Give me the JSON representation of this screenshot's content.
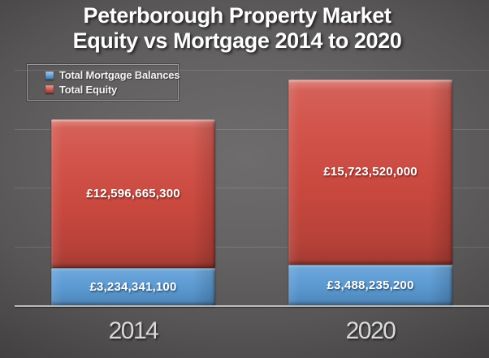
{
  "title": {
    "line1": "Peterborough Property Market",
    "line2": "Equity vs Mortgage 2014 to 2020"
  },
  "legend": {
    "items": [
      {
        "label": "Total Mortgage Balances",
        "series": "mortgage"
      },
      {
        "label": "Total Equity",
        "series": "equity"
      }
    ]
  },
  "chart_data": {
    "type": "bar",
    "stacked": true,
    "title": "Peterborough Property Market Equity vs Mortgage 2014 to 2020",
    "categories": [
      "2014",
      "2020"
    ],
    "series": [
      {
        "name": "Total Mortgage Balances",
        "key": "mortgage",
        "color": "#5B9BD5",
        "values": [
          3234341100,
          3488235200
        ],
        "data_labels": [
          "£3,234,341,100",
          "£3,488,235,200"
        ]
      },
      {
        "name": "Total Equity",
        "key": "equity",
        "color": "#CF4A40",
        "values": [
          12596665300,
          15723520000
        ],
        "data_labels": [
          "£12,596,665,300",
          "£15,723,520,000"
        ]
      }
    ],
    "xlabel": "",
    "ylabel": "",
    "ylim": [
      0,
      20000000000
    ],
    "gridline_interval": 5000000000,
    "grid": "horizontal",
    "legend_position": "top-left"
  },
  "colors": {
    "background_center": "#6E6C6C",
    "background_edge": "#3A3838",
    "mortgage_blue": "#5B9BD5",
    "equity_red": "#CF4A40",
    "title_text": "#FFFFFF",
    "x_label_text": "#D9D9D9",
    "data_label_text": "#FFFFFF",
    "gridline": "rgba(255,255,255,0.13)",
    "axis_line": "rgba(218,218,218,0.78)",
    "legend_border": "#9D9D9D"
  }
}
